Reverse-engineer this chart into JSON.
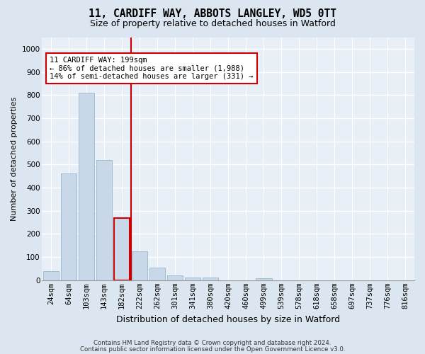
{
  "title": "11, CARDIFF WAY, ABBOTS LANGLEY, WD5 0TT",
  "subtitle": "Size of property relative to detached houses in Watford",
  "xlabel": "Distribution of detached houses by size in Watford",
  "ylabel": "Number of detached properties",
  "categories": [
    "24sqm",
    "64sqm",
    "103sqm",
    "143sqm",
    "182sqm",
    "222sqm",
    "262sqm",
    "301sqm",
    "341sqm",
    "380sqm",
    "420sqm",
    "460sqm",
    "499sqm",
    "539sqm",
    "578sqm",
    "618sqm",
    "658sqm",
    "697sqm",
    "737sqm",
    "776sqm",
    "816sqm"
  ],
  "values": [
    40,
    460,
    810,
    520,
    270,
    125,
    55,
    20,
    13,
    12,
    0,
    0,
    10,
    0,
    0,
    0,
    0,
    0,
    0,
    0,
    0
  ],
  "bar_color": "#c8d8e8",
  "bar_edge_color": "#a0bcd0",
  "highlight_bar_idx": 4,
  "highlight_bar_edge_color": "#cc0000",
  "vline_idx": 4.5,
  "vline_color": "#cc0000",
  "annotation_line1": "11 CARDIFF WAY: 199sqm",
  "annotation_line2": "← 86% of detached houses are smaller (1,988)",
  "annotation_line3": "14% of semi-detached houses are larger (331) →",
  "annotation_box_color": "#ffffff",
  "annotation_box_edge_color": "#cc0000",
  "ylim": [
    0,
    1050
  ],
  "yticks": [
    0,
    100,
    200,
    300,
    400,
    500,
    600,
    700,
    800,
    900,
    1000
  ],
  "footer1": "Contains HM Land Registry data © Crown copyright and database right 2024.",
  "footer2": "Contains public sector information licensed under the Open Government Licence v3.0.",
  "bg_color": "#dce6f0",
  "plot_bg_color": "#e8eff7",
  "grid_color": "#ffffff",
  "title_fontsize": 10.5,
  "subtitle_fontsize": 9,
  "ylabel_fontsize": 8,
  "xlabel_fontsize": 9,
  "tick_fontsize": 7.5,
  "footer_fontsize": 6.2
}
